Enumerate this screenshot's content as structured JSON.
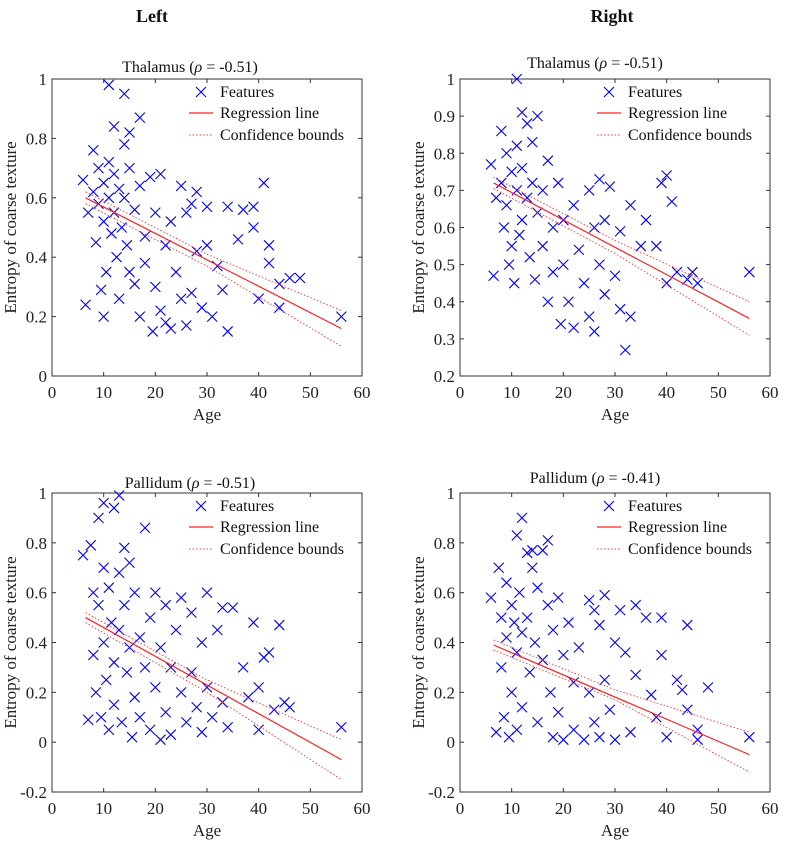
{
  "headers": {
    "left": "Left",
    "right": "Right"
  },
  "colors": {
    "points": "#0000ff",
    "regression": "#ff2020",
    "bounds": "#ff4040",
    "axes": "#333333"
  },
  "chart_data": [
    {
      "type": "scatter",
      "title_prefix": "Thalamus (",
      "title_symbol": "ρ",
      "title_suffix": " = -0.51)",
      "xlabel": "Age",
      "ylabel": "Entropy of coarse texture",
      "xlim": [
        0,
        60
      ],
      "ylim": [
        0,
        1
      ],
      "xticks": [
        0,
        10,
        20,
        30,
        40,
        50,
        60
      ],
      "yticks": [
        0,
        0.2,
        0.4,
        0.6,
        0.8,
        1
      ],
      "legend": {
        "placement": "top-right",
        "entries": [
          "Features",
          "Regression line",
          "Confidence bounds"
        ]
      },
      "regression": {
        "x": [
          6.5,
          56
        ],
        "y": [
          0.6,
          0.16
        ]
      },
      "bounds_upper": {
        "x": [
          6.5,
          30,
          56
        ],
        "y": [
          0.62,
          0.41,
          0.22
        ]
      },
      "bounds_lower": {
        "x": [
          6.5,
          30,
          56
        ],
        "y": [
          0.58,
          0.37,
          0.1
        ]
      },
      "points": [
        [
          6,
          0.66
        ],
        [
          6.5,
          0.24
        ],
        [
          7,
          0.55
        ],
        [
          8,
          0.76
        ],
        [
          8,
          0.62
        ],
        [
          8.5,
          0.45
        ],
        [
          9,
          0.7
        ],
        [
          9,
          0.58
        ],
        [
          9.5,
          0.29
        ],
        [
          10,
          0.2
        ],
        [
          10,
          0.65
        ],
        [
          10,
          0.52
        ],
        [
          10.5,
          0.35
        ],
        [
          11,
          0.98
        ],
        [
          11,
          0.72
        ],
        [
          11,
          0.6
        ],
        [
          11.5,
          0.48
        ],
        [
          12,
          0.84
        ],
        [
          12,
          0.68
        ],
        [
          12,
          0.55
        ],
        [
          12.5,
          0.4
        ],
        [
          13,
          0.26
        ],
        [
          13,
          0.63
        ],
        [
          13.5,
          0.5
        ],
        [
          14,
          0.95
        ],
        [
          14,
          0.78
        ],
        [
          14,
          0.6
        ],
        [
          14.5,
          0.44
        ],
        [
          15,
          0.82
        ],
        [
          15,
          0.7
        ],
        [
          15,
          0.35
        ],
        [
          16,
          0.56
        ],
        [
          16,
          0.31
        ],
        [
          17,
          0.87
        ],
        [
          17,
          0.64
        ],
        [
          17,
          0.2
        ],
        [
          18,
          0.47
        ],
        [
          18,
          0.38
        ],
        [
          19,
          0.67
        ],
        [
          19.5,
          0.15
        ],
        [
          20,
          0.3
        ],
        [
          20,
          0.55
        ],
        [
          21,
          0.68
        ],
        [
          21,
          0.22
        ],
        [
          22,
          0.44
        ],
        [
          22,
          0.18
        ],
        [
          23,
          0.52
        ],
        [
          23,
          0.16
        ],
        [
          24,
          0.35
        ],
        [
          25,
          0.64
        ],
        [
          25,
          0.26
        ],
        [
          26,
          0.55
        ],
        [
          26,
          0.17
        ],
        [
          27,
          0.58
        ],
        [
          27,
          0.28
        ],
        [
          28,
          0.62
        ],
        [
          28,
          0.42
        ],
        [
          29,
          0.23
        ],
        [
          30,
          0.57
        ],
        [
          30,
          0.44
        ],
        [
          31,
          0.2
        ],
        [
          32,
          0.37
        ],
        [
          33,
          0.29
        ],
        [
          34,
          0.57
        ],
        [
          34,
          0.15
        ],
        [
          36,
          0.46
        ],
        [
          37,
          0.56
        ],
        [
          39,
          0.57
        ],
        [
          39,
          0.5
        ],
        [
          40,
          0.26
        ],
        [
          41,
          0.65
        ],
        [
          42,
          0.44
        ],
        [
          42,
          0.38
        ],
        [
          44,
          0.31
        ],
        [
          44,
          0.23
        ],
        [
          46,
          0.33
        ],
        [
          48,
          0.33
        ],
        [
          56,
          0.2
        ]
      ]
    },
    {
      "type": "scatter",
      "title_prefix": "Thalamus (",
      "title_symbol": "ρ",
      "title_suffix": " = -0.51)",
      "xlabel": "Age",
      "ylabel": "Entropy of coarse texture",
      "xlim": [
        0,
        60
      ],
      "ylim": [
        0.2,
        1
      ],
      "xticks": [
        0,
        10,
        20,
        30,
        40,
        50,
        60
      ],
      "yticks": [
        0.2,
        0.3,
        0.4,
        0.5,
        0.6,
        0.7,
        0.8,
        0.9,
        1
      ],
      "legend": {
        "placement": "top-right",
        "entries": [
          "Features",
          "Regression line",
          "Confidence bounds"
        ]
      },
      "regression": {
        "x": [
          6.5,
          56
        ],
        "y": [
          0.72,
          0.355
        ]
      },
      "bounds_upper": {
        "x": [
          6.5,
          30,
          56
        ],
        "y": [
          0.735,
          0.565,
          0.4
        ]
      },
      "bounds_lower": {
        "x": [
          6.5,
          30,
          56
        ],
        "y": [
          0.705,
          0.53,
          0.31
        ]
      },
      "points": [
        [
          6,
          0.77
        ],
        [
          6.5,
          0.47
        ],
        [
          7,
          0.68
        ],
        [
          8,
          0.86
        ],
        [
          8,
          0.72
        ],
        [
          8.5,
          0.6
        ],
        [
          9,
          0.8
        ],
        [
          9,
          0.66
        ],
        [
          9.5,
          0.5
        ],
        [
          10,
          0.75
        ],
        [
          10,
          0.55
        ],
        [
          10.5,
          0.45
        ],
        [
          11,
          1.0
        ],
        [
          11,
          0.82
        ],
        [
          11,
          0.7
        ],
        [
          11.5,
          0.58
        ],
        [
          12,
          0.91
        ],
        [
          12,
          0.76
        ],
        [
          12,
          0.62
        ],
        [
          13,
          0.88
        ],
        [
          13,
          0.68
        ],
        [
          13.5,
          0.52
        ],
        [
          14,
          0.83
        ],
        [
          14,
          0.72
        ],
        [
          14.5,
          0.46
        ],
        [
          15,
          0.9
        ],
        [
          15,
          0.64
        ],
        [
          16,
          0.55
        ],
        [
          16,
          0.7
        ],
        [
          17,
          0.78
        ],
        [
          17,
          0.4
        ],
        [
          18,
          0.6
        ],
        [
          18,
          0.48
        ],
        [
          19,
          0.72
        ],
        [
          19.5,
          0.34
        ],
        [
          20,
          0.5
        ],
        [
          20,
          0.62
        ],
        [
          21,
          0.4
        ],
        [
          22,
          0.66
        ],
        [
          22,
          0.33
        ],
        [
          23,
          0.54
        ],
        [
          24,
          0.45
        ],
        [
          25,
          0.7
        ],
        [
          25,
          0.36
        ],
        [
          26,
          0.6
        ],
        [
          26,
          0.32
        ],
        [
          27,
          0.73
        ],
        [
          27,
          0.5
        ],
        [
          28,
          0.62
        ],
        [
          28,
          0.42
        ],
        [
          29,
          0.71
        ],
        [
          30,
          0.47
        ],
        [
          31,
          0.59
        ],
        [
          31,
          0.38
        ],
        [
          32,
          0.27
        ],
        [
          33,
          0.36
        ],
        [
          33,
          0.66
        ],
        [
          35,
          0.55
        ],
        [
          36,
          0.62
        ],
        [
          38,
          0.55
        ],
        [
          39,
          0.72
        ],
        [
          40,
          0.74
        ],
        [
          40,
          0.45
        ],
        [
          41,
          0.67
        ],
        [
          42,
          0.48
        ],
        [
          44,
          0.46
        ],
        [
          45,
          0.48
        ],
        [
          46,
          0.45
        ],
        [
          56,
          0.48
        ]
      ]
    },
    {
      "type": "scatter",
      "title_prefix": "Pallidum (",
      "title_symbol": "ρ",
      "title_suffix": " = -0.51)",
      "xlabel": "Age",
      "ylabel": "Entropy of coarse texture",
      "xlim": [
        0,
        60
      ],
      "ylim": [
        -0.2,
        1
      ],
      "xticks": [
        0,
        10,
        20,
        30,
        40,
        50,
        60
      ],
      "yticks": [
        -0.2,
        0,
        0.2,
        0.4,
        0.6,
        0.8,
        1
      ],
      "legend": {
        "placement": "top-right",
        "entries": [
          "Features",
          "Regression line",
          "Confidence bounds"
        ]
      },
      "regression": {
        "x": [
          6.5,
          56
        ],
        "y": [
          0.5,
          -0.07
        ]
      },
      "bounds_upper": {
        "x": [
          6.5,
          30,
          56
        ],
        "y": [
          0.52,
          0.25,
          0.01
        ]
      },
      "bounds_lower": {
        "x": [
          6.5,
          30,
          56
        ],
        "y": [
          0.48,
          0.2,
          -0.15
        ]
      },
      "points": [
        [
          6,
          0.75
        ],
        [
          7,
          0.09
        ],
        [
          7.5,
          0.79
        ],
        [
          8,
          0.6
        ],
        [
          8,
          0.35
        ],
        [
          8.5,
          0.2
        ],
        [
          9,
          0.9
        ],
        [
          9,
          0.55
        ],
        [
          9.5,
          0.1
        ],
        [
          10,
          0.96
        ],
        [
          10,
          0.7
        ],
        [
          10,
          0.4
        ],
        [
          10.5,
          0.25
        ],
        [
          11,
          0.62
        ],
        [
          11,
          0.05
        ],
        [
          11.5,
          0.48
        ],
        [
          12,
          0.94
        ],
        [
          12,
          0.32
        ],
        [
          12,
          0.15
        ],
        [
          13,
          0.99
        ],
        [
          13,
          0.68
        ],
        [
          13,
          0.45
        ],
        [
          13.5,
          0.08
        ],
        [
          14,
          0.78
        ],
        [
          14,
          0.55
        ],
        [
          14.5,
          0.28
        ],
        [
          15,
          0.72
        ],
        [
          15,
          0.38
        ],
        [
          15.5,
          0.02
        ],
        [
          16,
          0.6
        ],
        [
          16,
          0.18
        ],
        [
          17,
          0.42
        ],
        [
          17,
          0.1
        ],
        [
          18,
          0.86
        ],
        [
          18,
          0.3
        ],
        [
          19,
          0.5
        ],
        [
          19,
          0.05
        ],
        [
          20,
          0.6
        ],
        [
          20,
          0.22
        ],
        [
          21,
          0.38
        ],
        [
          21,
          0.01
        ],
        [
          22,
          0.55
        ],
        [
          22,
          0.12
        ],
        [
          23,
          0.3
        ],
        [
          23,
          0.03
        ],
        [
          24,
          0.45
        ],
        [
          25,
          0.2
        ],
        [
          25,
          0.58
        ],
        [
          26,
          0.08
        ],
        [
          27,
          0.52
        ],
        [
          27,
          0.28
        ],
        [
          28,
          0.14
        ],
        [
          29,
          0.4
        ],
        [
          29,
          0.04
        ],
        [
          30,
          0.6
        ],
        [
          30,
          0.22
        ],
        [
          31,
          0.1
        ],
        [
          32,
          0.45
        ],
        [
          33,
          0.16
        ],
        [
          33,
          0.54
        ],
        [
          34,
          0.06
        ],
        [
          35,
          0.54
        ],
        [
          37,
          0.3
        ],
        [
          38,
          0.18
        ],
        [
          39,
          0.48
        ],
        [
          40,
          0.22
        ],
        [
          40,
          0.05
        ],
        [
          41,
          0.34
        ],
        [
          42,
          0.36
        ],
        [
          43,
          0.13
        ],
        [
          44,
          0.47
        ],
        [
          45,
          0.16
        ],
        [
          46,
          0.14
        ],
        [
          56,
          0.06
        ]
      ]
    },
    {
      "type": "scatter",
      "title_prefix": "Pallidum (",
      "title_symbol": "ρ",
      "title_suffix": " = -0.41)",
      "xlabel": "Age",
      "ylabel": "Entropy of coarse texture",
      "xlim": [
        0,
        60
      ],
      "ylim": [
        -0.2,
        1
      ],
      "xticks": [
        0,
        10,
        20,
        30,
        40,
        50,
        60
      ],
      "yticks": [
        -0.2,
        0,
        0.2,
        0.4,
        0.6,
        0.8,
        1
      ],
      "legend": {
        "placement": "top-right",
        "entries": [
          "Features",
          "Regression line",
          "Confidence bounds"
        ]
      },
      "regression": {
        "x": [
          6.5,
          56
        ],
        "y": [
          0.39,
          -0.05
        ]
      },
      "bounds_upper": {
        "x": [
          6.5,
          30,
          56
        ],
        "y": [
          0.41,
          0.21,
          0.04
        ]
      },
      "bounds_lower": {
        "x": [
          6.5,
          30,
          56
        ],
        "y": [
          0.37,
          0.17,
          -0.12
        ]
      },
      "points": [
        [
          6,
          0.58
        ],
        [
          7,
          0.04
        ],
        [
          7.5,
          0.7
        ],
        [
          8,
          0.5
        ],
        [
          8,
          0.3
        ],
        [
          8.5,
          0.1
        ],
        [
          9,
          0.64
        ],
        [
          9,
          0.42
        ],
        [
          9.5,
          0.02
        ],
        [
          10,
          0.55
        ],
        [
          10,
          0.2
        ],
        [
          10.5,
          0.48
        ],
        [
          11,
          0.83
        ],
        [
          11,
          0.36
        ],
        [
          11,
          0.05
        ],
        [
          11.5,
          0.6
        ],
        [
          12,
          0.9
        ],
        [
          12,
          0.44
        ],
        [
          12,
          0.14
        ],
        [
          13,
          0.76
        ],
        [
          13,
          0.5
        ],
        [
          13.5,
          0.28
        ],
        [
          14,
          0.77
        ],
        [
          14,
          0.7
        ],
        [
          14.5,
          0.4
        ],
        [
          15,
          0.62
        ],
        [
          15,
          0.08
        ],
        [
          16,
          0.77
        ],
        [
          16,
          0.33
        ],
        [
          17,
          0.81
        ],
        [
          17,
          0.55
        ],
        [
          17.5,
          0.2
        ],
        [
          18,
          0.45
        ],
        [
          18,
          0.02
        ],
        [
          19,
          0.58
        ],
        [
          19,
          0.12
        ],
        [
          20,
          0.35
        ],
        [
          20,
          0.01
        ],
        [
          21,
          0.48
        ],
        [
          22,
          0.24
        ],
        [
          22,
          0.05
        ],
        [
          23,
          0.38
        ],
        [
          24,
          0.01
        ],
        [
          25,
          0.57
        ],
        [
          25,
          0.2
        ],
        [
          26,
          0.53
        ],
        [
          26,
          0.08
        ],
        [
          27,
          0.47
        ],
        [
          27,
          0.02
        ],
        [
          28,
          0.59
        ],
        [
          28,
          0.25
        ],
        [
          29,
          0.13
        ],
        [
          30,
          0.4
        ],
        [
          30,
          0.01
        ],
        [
          31,
          0.53
        ],
        [
          32,
          0.36
        ],
        [
          33,
          0.04
        ],
        [
          34,
          0.55
        ],
        [
          34,
          0.27
        ],
        [
          36,
          0.5
        ],
        [
          37,
          0.19
        ],
        [
          38,
          0.1
        ],
        [
          39,
          0.5
        ],
        [
          39,
          0.35
        ],
        [
          40,
          0.02
        ],
        [
          42,
          0.25
        ],
        [
          43,
          0.21
        ],
        [
          44,
          0.47
        ],
        [
          44,
          0.13
        ],
        [
          46,
          0.05
        ],
        [
          46,
          0.01
        ],
        [
          48,
          0.22
        ],
        [
          56,
          0.02
        ]
      ]
    }
  ]
}
